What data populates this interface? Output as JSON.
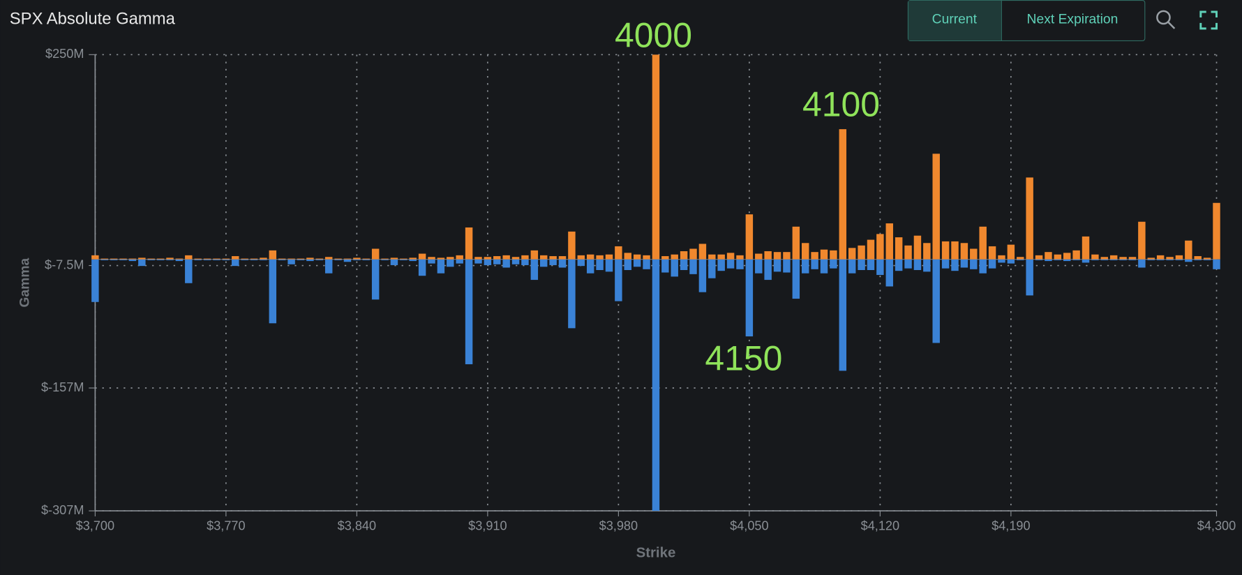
{
  "controls": {
    "buttons": [
      "Current",
      "Next Expiration"
    ]
  },
  "chart_data": {
    "type": "bar",
    "title": "SPX Absolute Gamma",
    "x_label": "Strike",
    "y_label": "Gamma",
    "x": [
      3700,
      3705,
      3710,
      3715,
      3720,
      3725,
      3730,
      3735,
      3740,
      3745,
      3750,
      3755,
      3760,
      3765,
      3770,
      3775,
      3780,
      3785,
      3790,
      3795,
      3800,
      3805,
      3810,
      3815,
      3820,
      3825,
      3830,
      3835,
      3840,
      3845,
      3850,
      3855,
      3860,
      3865,
      3870,
      3875,
      3880,
      3885,
      3890,
      3895,
      3900,
      3905,
      3910,
      3915,
      3920,
      3925,
      3930,
      3935,
      3940,
      3945,
      3950,
      3955,
      3960,
      3965,
      3970,
      3975,
      3980,
      3985,
      3990,
      3995,
      4000,
      4005,
      4010,
      4015,
      4020,
      4025,
      4030,
      4035,
      4040,
      4045,
      4050,
      4055,
      4060,
      4065,
      4070,
      4075,
      4080,
      4085,
      4090,
      4095,
      4100,
      4105,
      4110,
      4115,
      4120,
      4125,
      4130,
      4135,
      4140,
      4145,
      4150,
      4155,
      4160,
      4165,
      4170,
      4175,
      4180,
      4185,
      4190,
      4195,
      4200,
      4205,
      4210,
      4215,
      4220,
      4225,
      4230,
      4235,
      4240,
      4245,
      4250,
      4255,
      4260,
      4265,
      4270,
      4275,
      4280,
      4285,
      4290,
      4295,
      4300
    ],
    "series": [
      {
        "color": "#f0882e",
        "values": [
          5,
          1,
          1,
          1,
          1,
          2,
          1,
          1,
          2,
          1,
          5,
          1,
          1,
          1,
          1,
          4,
          1,
          1,
          2,
          11,
          1,
          1,
          1,
          2,
          1,
          3,
          1,
          1,
          2,
          1,
          13,
          1,
          2,
          1,
          2,
          7,
          3,
          2,
          3,
          5,
          39,
          3,
          3,
          4,
          5,
          3,
          5,
          11,
          5,
          4,
          4,
          34,
          5,
          6,
          5,
          6,
          16,
          8,
          6,
          5,
          250,
          4,
          6,
          10,
          13,
          19,
          6,
          6,
          8,
          5,
          55,
          7,
          10,
          9,
          9,
          40,
          20,
          9,
          12,
          11,
          159,
          14,
          17,
          24,
          31,
          44,
          27,
          17,
          29,
          20,
          129,
          22,
          22,
          20,
          13,
          40,
          16,
          5,
          18,
          3,
          100,
          5,
          9,
          6,
          8,
          11,
          28,
          6,
          3,
          5,
          3,
          3,
          46,
          2,
          5,
          3,
          5,
          23,
          4,
          2,
          69
        ]
      },
      {
        "color": "#3a82d6",
        "values": [
          -52,
          -1,
          -1,
          -1,
          -2,
          -8,
          -1,
          -1,
          -1,
          -2,
          -29,
          -1,
          -1,
          -1,
          -1,
          -8,
          -1,
          -1,
          -1,
          -78,
          -1,
          -6,
          -1,
          -2,
          -1,
          -17,
          -1,
          -3,
          -1,
          -1,
          -49,
          -1,
          -7,
          -1,
          -2,
          -20,
          -5,
          -17,
          -9,
          -5,
          -128,
          -5,
          -7,
          -6,
          -10,
          -6,
          -7,
          -25,
          -9,
          -7,
          -10,
          -84,
          -8,
          -17,
          -13,
          -15,
          -51,
          -13,
          -9,
          -12,
          -307,
          -16,
          -21,
          -13,
          -18,
          -40,
          -23,
          -14,
          -11,
          -12,
          -94,
          -17,
          -25,
          -15,
          -16,
          -48,
          -17,
          -12,
          -17,
          -11,
          -136,
          -17,
          -13,
          -13,
          -19,
          -33,
          -14,
          -11,
          -13,
          -15,
          -102,
          -11,
          -14,
          -10,
          -12,
          -17,
          -11,
          -4,
          -5,
          -1,
          -44,
          -1,
          -2,
          -1,
          -2,
          -1,
          -4,
          -1,
          -1,
          -1,
          -1,
          -1,
          -10,
          -1,
          -1,
          -1,
          -1,
          -3,
          -1,
          -1,
          -12
        ]
      }
    ],
    "xlim": [
      3700,
      4300
    ],
    "xticks": [
      {
        "value": 3700,
        "label": "$3,700"
      },
      {
        "value": 3770,
        "label": "$3,770"
      },
      {
        "value": 3840,
        "label": "$3,840"
      },
      {
        "value": 3910,
        "label": "$3,910"
      },
      {
        "value": 3980,
        "label": "$3,980"
      },
      {
        "value": 4050,
        "label": "$4,050"
      },
      {
        "value": 4120,
        "label": "$4,120"
      },
      {
        "value": 4190,
        "label": "$4,190"
      },
      {
        "value": 4300,
        "label": "$4,300"
      }
    ],
    "ylim": [
      -307,
      250
    ],
    "yticks": [
      {
        "value": 250,
        "label": "$250M"
      },
      {
        "value": -7.5,
        "label": "$-7.5M"
      },
      {
        "value": -157,
        "label": "$-157M"
      },
      {
        "value": -307,
        "label": "$-307M"
      }
    ],
    "grid": true,
    "annotations": [
      "4000",
      "4100",
      "4150"
    ]
  }
}
